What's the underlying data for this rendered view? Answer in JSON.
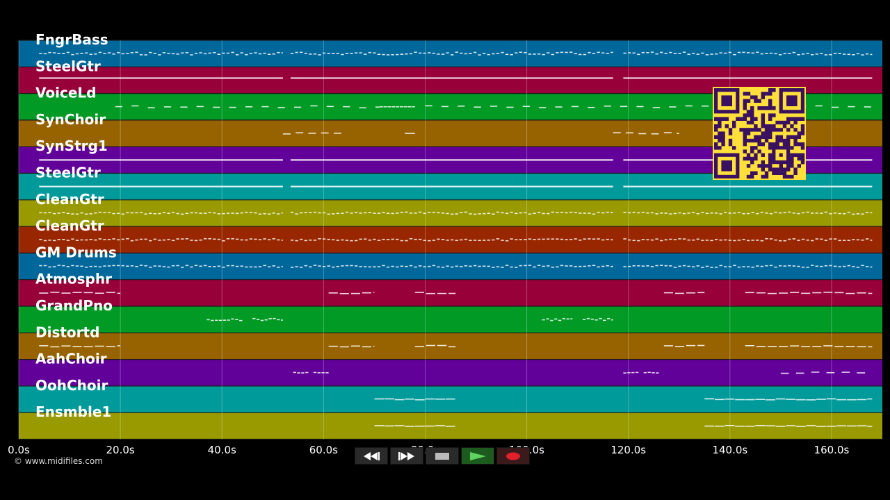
{
  "player": {
    "tracks": [
      {
        "name": "FngrBass",
        "color": "#00679b",
        "pattern": "dots"
      },
      {
        "name": "SteelGtr",
        "color": "#98003a",
        "pattern": "solid"
      },
      {
        "name": "VoiceLd",
        "color": "#009a25",
        "pattern": "dashes"
      },
      {
        "name": "SynChoir",
        "color": "#976300",
        "pattern": "sparse"
      },
      {
        "name": "SynStrg1",
        "color": "#62009a",
        "pattern": "solid"
      },
      {
        "name": "SteelGtr",
        "color": "#009a9a",
        "pattern": "solid"
      },
      {
        "name": "CleanGtr",
        "color": "#989a00",
        "pattern": "dots"
      },
      {
        "name": "CleanGtr",
        "color": "#982700",
        "pattern": "dots"
      },
      {
        "name": "GM Drums",
        "color": "#00679b",
        "pattern": "dots"
      },
      {
        "name": "Atmosphr",
        "color": "#98003a",
        "pattern": "phrases"
      },
      {
        "name": "GrandPno",
        "color": "#009a25",
        "pattern": "mid"
      },
      {
        "name": "Distortd",
        "color": "#976300",
        "pattern": "phrases"
      },
      {
        "name": "AahChoir",
        "color": "#62009a",
        "pattern": "sparse2"
      },
      {
        "name": "OohChoir",
        "color": "#009a9a",
        "pattern": "long"
      },
      {
        "name": "Ensmble1",
        "color": "#989a00",
        "pattern": "long"
      }
    ],
    "time_axis": {
      "unit": "s",
      "min": 0,
      "max": 170,
      "ticks": [
        "0.0s",
        "20.0s",
        "40.0s",
        "60.0s",
        "80.0s",
        "100.0s",
        "120.0s",
        "140.0s",
        "160.0s"
      ],
      "tick_values": [
        0,
        20,
        40,
        60,
        80,
        100,
        120,
        140,
        160
      ]
    },
    "copyright": "© www.midifiles.com",
    "qr_colors": {
      "bg": "#ffe03a",
      "fg": "#3a1060"
    },
    "transport": [
      {
        "name": "rewind-button",
        "icon": "rewind-icon"
      },
      {
        "name": "fast-forward-button",
        "icon": "fast-forward-icon"
      },
      {
        "name": "stop-button",
        "icon": "stop-icon"
      },
      {
        "name": "play-button",
        "icon": "play-icon"
      },
      {
        "name": "record-button",
        "icon": "record-icon"
      }
    ]
  }
}
